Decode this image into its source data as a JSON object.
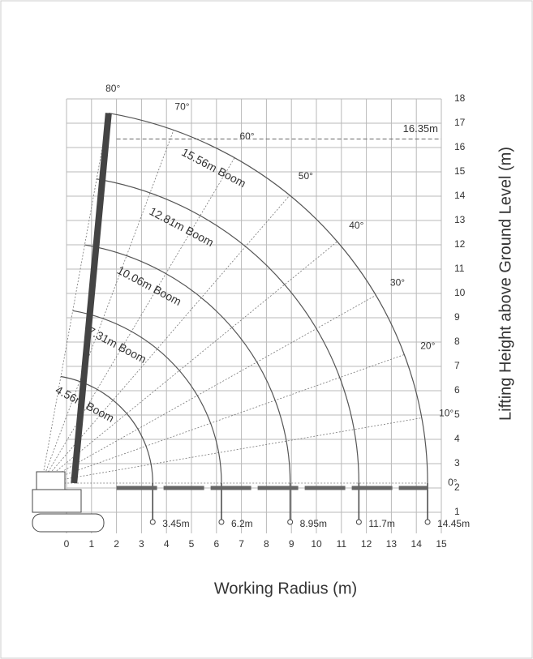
{
  "x_axis": {
    "label": "Working Radius (m)",
    "ticks": [
      0,
      1,
      2,
      3,
      4,
      5,
      6,
      7,
      8,
      9,
      10,
      11,
      12,
      13,
      14,
      15
    ]
  },
  "y_axis": {
    "label": "Lifting Height above Ground Level (m)",
    "ticks": [
      1,
      2,
      3,
      4,
      5,
      6,
      7,
      8,
      9,
      10,
      11,
      12,
      13,
      14,
      15,
      16,
      17,
      18
    ]
  },
  "max_height": {
    "value": 16.35,
    "label": "16.35m"
  },
  "booms": [
    {
      "label": "4.56m Boom",
      "reach": {
        "value": 3.45,
        "label": "3.45m"
      }
    },
    {
      "label": "7.31m Boom",
      "reach": {
        "value": 6.2,
        "label": "6.2m"
      }
    },
    {
      "label": "10.06m Boom",
      "reach": {
        "value": 8.95,
        "label": "8.95m"
      }
    },
    {
      "label": "12.81m Boom",
      "reach": {
        "value": 11.7,
        "label": "11.7m"
      }
    },
    {
      "label": "15.56m Boom",
      "reach": {
        "value": 14.45,
        "label": "14.45m"
      }
    }
  ],
  "angles": [
    {
      "value": 0,
      "label": "0°"
    },
    {
      "value": 10,
      "label": "10°"
    },
    {
      "value": 20,
      "label": "20°"
    },
    {
      "value": 30,
      "label": "30°"
    },
    {
      "value": 40,
      "label": "40°"
    },
    {
      "value": 50,
      "label": "50°"
    },
    {
      "value": 60,
      "label": "60°"
    },
    {
      "value": 70,
      "label": "70°"
    },
    {
      "value": 80,
      "label": "80°"
    }
  ]
}
